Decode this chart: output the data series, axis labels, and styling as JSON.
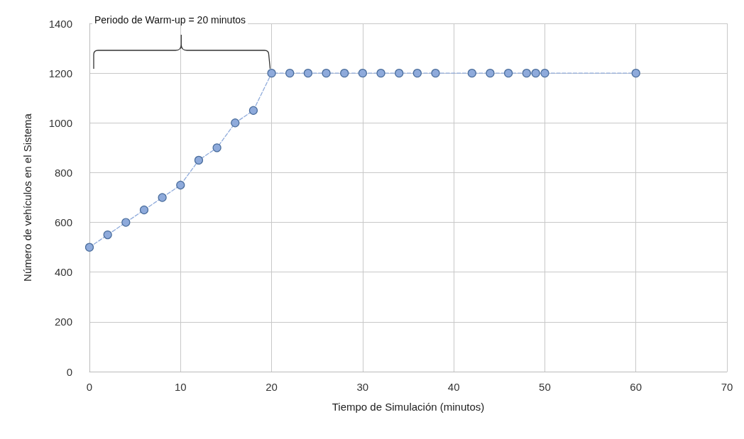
{
  "chart_data": {
    "type": "line",
    "xlabel": "Tiempo de Simulación (minutos)",
    "ylabel": "Número de vehículos en el Sistema",
    "annotations": [
      "Periodo de Warm-up = 20 minutos"
    ],
    "x": [
      0,
      2,
      4,
      6,
      8,
      10,
      12,
      14,
      16,
      18,
      20,
      22,
      24,
      26,
      28,
      30,
      32,
      34,
      36,
      38,
      42,
      44,
      46,
      48,
      49,
      50,
      60
    ],
    "series": [
      {
        "color": "#8eaadb",
        "values": [
          500,
          550,
          600,
          650,
          700,
          750,
          850,
          900,
          1000,
          1050,
          1200,
          1200,
          1200,
          1200,
          1200,
          1200,
          1200,
          1200,
          1200,
          1200,
          1200,
          1200,
          1200,
          1200,
          1200,
          1200,
          1200
        ]
      }
    ],
    "xlim": [
      0,
      70
    ],
    "xticks": [
      0,
      10,
      20,
      30,
      40,
      50,
      60,
      70
    ],
    "ylim": [
      0,
      1400
    ],
    "yticks": [
      0,
      200,
      400,
      600,
      800,
      1000,
      1200,
      1400
    ],
    "grid": true,
    "marker": "circle",
    "line_style": "dashed"
  }
}
